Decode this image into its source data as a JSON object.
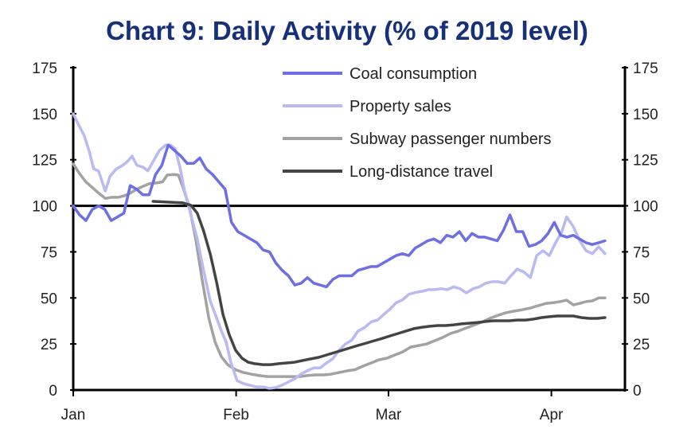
{
  "chart_data": {
    "type": "line",
    "title": "Chart 9: Daily Activity (% of 2019 level)",
    "xlabel": "",
    "ylabel": "",
    "x_unit": "days since Jan 1",
    "xlim": [
      0,
      105
    ],
    "ylim": [
      0,
      175
    ],
    "yticks": [
      0,
      25,
      50,
      75,
      100,
      125,
      150,
      175
    ],
    "ytick_labels": [
      "0",
      "25",
      "50",
      "75",
      "100",
      "125",
      "150",
      "175"
    ],
    "xticks": [
      {
        "day": 0,
        "label": "Jan"
      },
      {
        "day": 31,
        "label": "Feb"
      },
      {
        "day": 60,
        "label": "Mar"
      },
      {
        "day": 91,
        "label": "Apr"
      }
    ],
    "reference_line": 100,
    "grid": false,
    "legend_position": "top-center",
    "series": [
      {
        "name": "Coal consumption",
        "color": "#6e6fe2",
        "start_day": 0,
        "end_day": 101.2,
        "values": [
          100,
          95,
          92,
          98,
          100,
          98,
          92,
          94,
          96,
          111,
          109,
          106,
          106,
          117,
          122,
          133,
          130,
          127,
          123,
          123,
          126,
          120,
          117,
          113,
          109,
          91,
          86,
          84,
          82,
          80,
          76,
          75,
          69,
          65,
          62,
          57,
          58,
          61,
          58,
          57,
          56,
          60,
          62,
          62,
          62,
          65,
          66,
          67,
          67,
          69,
          71,
          73,
          74,
          73,
          77,
          79,
          81,
          82,
          80,
          84,
          83,
          86,
          81,
          85,
          83,
          83,
          82,
          81,
          87,
          95,
          86,
          86,
          78,
          79,
          81,
          85,
          91,
          84,
          83,
          84,
          82,
          80,
          79,
          80,
          81
        ]
      },
      {
        "name": "Property sales",
        "color": "#b9baf2",
        "points": [
          [
            0,
            150
          ],
          [
            1.2,
            143
          ],
          [
            2.1,
            138
          ],
          [
            3,
            130
          ],
          [
            3.9,
            120
          ],
          [
            4.8,
            119
          ],
          [
            6.1,
            108
          ],
          [
            7,
            116
          ],
          [
            8.2,
            120
          ],
          [
            9.4,
            122
          ],
          [
            10.3,
            124
          ],
          [
            11.2,
            127
          ],
          [
            12.1,
            122
          ],
          [
            13.3,
            121
          ],
          [
            14.2,
            119
          ],
          [
            15.2,
            124
          ],
          [
            16.4,
            130
          ],
          [
            17.6,
            133
          ],
          [
            18.5,
            133
          ],
          [
            19.4,
            131
          ],
          [
            20.3,
            121
          ],
          [
            21.2,
            108
          ],
          [
            22.4,
            95
          ],
          [
            23.6,
            82
          ],
          [
            24.8,
            65
          ],
          [
            26.1,
            48
          ],
          [
            27.3,
            39
          ],
          [
            28.2,
            32
          ],
          [
            29.1,
            26
          ],
          [
            30,
            15
          ],
          [
            31.2,
            5
          ],
          [
            32.4,
            3.5
          ],
          [
            33.6,
            2.6
          ],
          [
            34.8,
            1.7
          ],
          [
            36.1,
            1.7
          ],
          [
            37.3,
            0.9
          ],
          [
            38.5,
            1.3
          ],
          [
            39.7,
            2.6
          ],
          [
            40.9,
            4.3
          ],
          [
            42.1,
            6
          ],
          [
            43.3,
            8.6
          ],
          [
            44.5,
            10.4
          ],
          [
            45.8,
            12
          ],
          [
            47,
            12
          ],
          [
            48.2,
            14.7
          ],
          [
            49.4,
            17
          ],
          [
            50.6,
            21.6
          ],
          [
            51.8,
            25
          ],
          [
            53,
            27
          ],
          [
            54.2,
            32
          ],
          [
            55.5,
            34
          ],
          [
            56.7,
            37
          ],
          [
            57.9,
            38
          ],
          [
            59.1,
            41
          ],
          [
            60.3,
            44
          ],
          [
            61.5,
            47.5
          ],
          [
            62.7,
            49
          ],
          [
            63.9,
            52
          ],
          [
            65.2,
            53
          ],
          [
            66.4,
            53.6
          ],
          [
            67.6,
            54.5
          ],
          [
            68.8,
            54.5
          ],
          [
            70,
            55
          ],
          [
            71.2,
            54.5
          ],
          [
            72.4,
            56
          ],
          [
            73.6,
            55
          ],
          [
            74.8,
            52.7
          ],
          [
            76.1,
            55
          ],
          [
            77.3,
            56
          ],
          [
            78.5,
            58
          ],
          [
            79.7,
            58.8
          ],
          [
            80.9,
            58.8
          ],
          [
            82.1,
            58
          ],
          [
            83.3,
            62
          ],
          [
            84.5,
            65.7
          ],
          [
            85.8,
            64
          ],
          [
            87,
            61
          ],
          [
            88.2,
            73
          ],
          [
            89.4,
            75.6
          ],
          [
            90.6,
            73
          ],
          [
            91.8,
            80
          ],
          [
            93,
            86
          ],
          [
            93.9,
            94
          ],
          [
            95.2,
            88.6
          ],
          [
            96.4,
            81
          ],
          [
            97.6,
            75.6
          ],
          [
            98.8,
            74
          ],
          [
            100,
            77.8
          ],
          [
            101.2,
            74
          ]
        ]
      },
      {
        "name": "Subway passenger numbers",
        "color": "#a2a2a2",
        "points": [
          [
            0,
            122.7
          ],
          [
            1.2,
            117.5
          ],
          [
            2.4,
            113
          ],
          [
            3.6,
            110
          ],
          [
            4.8,
            107
          ],
          [
            6.1,
            104
          ],
          [
            7.3,
            104.6
          ],
          [
            8.5,
            104.6
          ],
          [
            9.7,
            105.4
          ],
          [
            10.9,
            107
          ],
          [
            12.1,
            109
          ],
          [
            13.3,
            110.6
          ],
          [
            14.5,
            112
          ],
          [
            15.8,
            112.4
          ],
          [
            17,
            113
          ],
          [
            17.9,
            116.7
          ],
          [
            19.1,
            117
          ],
          [
            20,
            116.7
          ],
          [
            20.9,
            110
          ],
          [
            22.1,
            99.4
          ],
          [
            23.3,
            82
          ],
          [
            24.5,
            60.5
          ],
          [
            25.8,
            39
          ],
          [
            27,
            26
          ],
          [
            28.2,
            18
          ],
          [
            29.4,
            13.8
          ],
          [
            30.9,
            11
          ],
          [
            32.4,
            9.5
          ],
          [
            33.9,
            8.6
          ],
          [
            35.5,
            7.8
          ],
          [
            37,
            7.3
          ],
          [
            38.5,
            7.3
          ],
          [
            40,
            7.3
          ],
          [
            41.5,
            7.3
          ],
          [
            43,
            7.3
          ],
          [
            44.5,
            7.8
          ],
          [
            46.1,
            8.2
          ],
          [
            47.6,
            8.2
          ],
          [
            49.1,
            8.6
          ],
          [
            50.6,
            9.5
          ],
          [
            52.1,
            10.4
          ],
          [
            53.6,
            11
          ],
          [
            55.2,
            13
          ],
          [
            56.7,
            14.7
          ],
          [
            58.2,
            16.4
          ],
          [
            59.7,
            17.3
          ],
          [
            61.2,
            19
          ],
          [
            62.7,
            20.7
          ],
          [
            64.2,
            23.3
          ],
          [
            65.8,
            24.2
          ],
          [
            67.3,
            25
          ],
          [
            68.8,
            26.8
          ],
          [
            70.3,
            28.5
          ],
          [
            71.8,
            30.7
          ],
          [
            73.3,
            32
          ],
          [
            74.8,
            33.7
          ],
          [
            76.4,
            35.4
          ],
          [
            77.9,
            37
          ],
          [
            79.4,
            39
          ],
          [
            80.9,
            40.6
          ],
          [
            82.4,
            42
          ],
          [
            83.9,
            42.8
          ],
          [
            85.5,
            43.6
          ],
          [
            87,
            44.5
          ],
          [
            88.5,
            45.8
          ],
          [
            90,
            47
          ],
          [
            91.5,
            47.5
          ],
          [
            92.7,
            48
          ],
          [
            93.9,
            48.8
          ],
          [
            95.2,
            46.2
          ],
          [
            96.4,
            47
          ],
          [
            97.6,
            48
          ],
          [
            98.8,
            48.4
          ],
          [
            100,
            50
          ],
          [
            101.2,
            50
          ]
        ]
      },
      {
        "name": "Long-distance travel",
        "color": "#444444",
        "points": [
          [
            15.2,
            102.4
          ],
          [
            17.9,
            102
          ],
          [
            20.9,
            101.6
          ],
          [
            22.4,
            100.3
          ],
          [
            23.6,
            96
          ],
          [
            24.8,
            86.4
          ],
          [
            26.1,
            73.5
          ],
          [
            27.3,
            58.3
          ],
          [
            28.5,
            41
          ],
          [
            29.7,
            30
          ],
          [
            30.9,
            21.6
          ],
          [
            32.1,
            17.3
          ],
          [
            33.3,
            15.1
          ],
          [
            34.5,
            14.3
          ],
          [
            36.1,
            13.8
          ],
          [
            37.6,
            13.8
          ],
          [
            39.1,
            14.3
          ],
          [
            40.6,
            14.7
          ],
          [
            42.1,
            15.1
          ],
          [
            43.6,
            16
          ],
          [
            45.2,
            16.9
          ],
          [
            46.7,
            17.7
          ],
          [
            48.2,
            19
          ],
          [
            49.7,
            20.3
          ],
          [
            51.2,
            21.6
          ],
          [
            52.7,
            22.9
          ],
          [
            54.2,
            24.2
          ],
          [
            55.8,
            25.5
          ],
          [
            57.3,
            26.8
          ],
          [
            58.8,
            28
          ],
          [
            60.3,
            29.4
          ],
          [
            61.8,
            30.7
          ],
          [
            63.3,
            32
          ],
          [
            64.8,
            33.3
          ],
          [
            66.4,
            34.1
          ],
          [
            67.9,
            34.6
          ],
          [
            69.4,
            35
          ],
          [
            70.9,
            35
          ],
          [
            72.4,
            35.4
          ],
          [
            73.9,
            35.9
          ],
          [
            75.5,
            36.3
          ],
          [
            77,
            36.7
          ],
          [
            78.5,
            37.2
          ],
          [
            80,
            37.6
          ],
          [
            81.5,
            37.6
          ],
          [
            83,
            37.6
          ],
          [
            84.5,
            38
          ],
          [
            86.1,
            38
          ],
          [
            87.6,
            38.5
          ],
          [
            89.1,
            39.3
          ],
          [
            90.6,
            39.8
          ],
          [
            92.1,
            40.2
          ],
          [
            93.6,
            40.2
          ],
          [
            95.2,
            40.2
          ],
          [
            96.7,
            39.3
          ],
          [
            98.2,
            38.9
          ],
          [
            99.7,
            38.9
          ],
          [
            101.2,
            39.3
          ]
        ]
      }
    ]
  }
}
